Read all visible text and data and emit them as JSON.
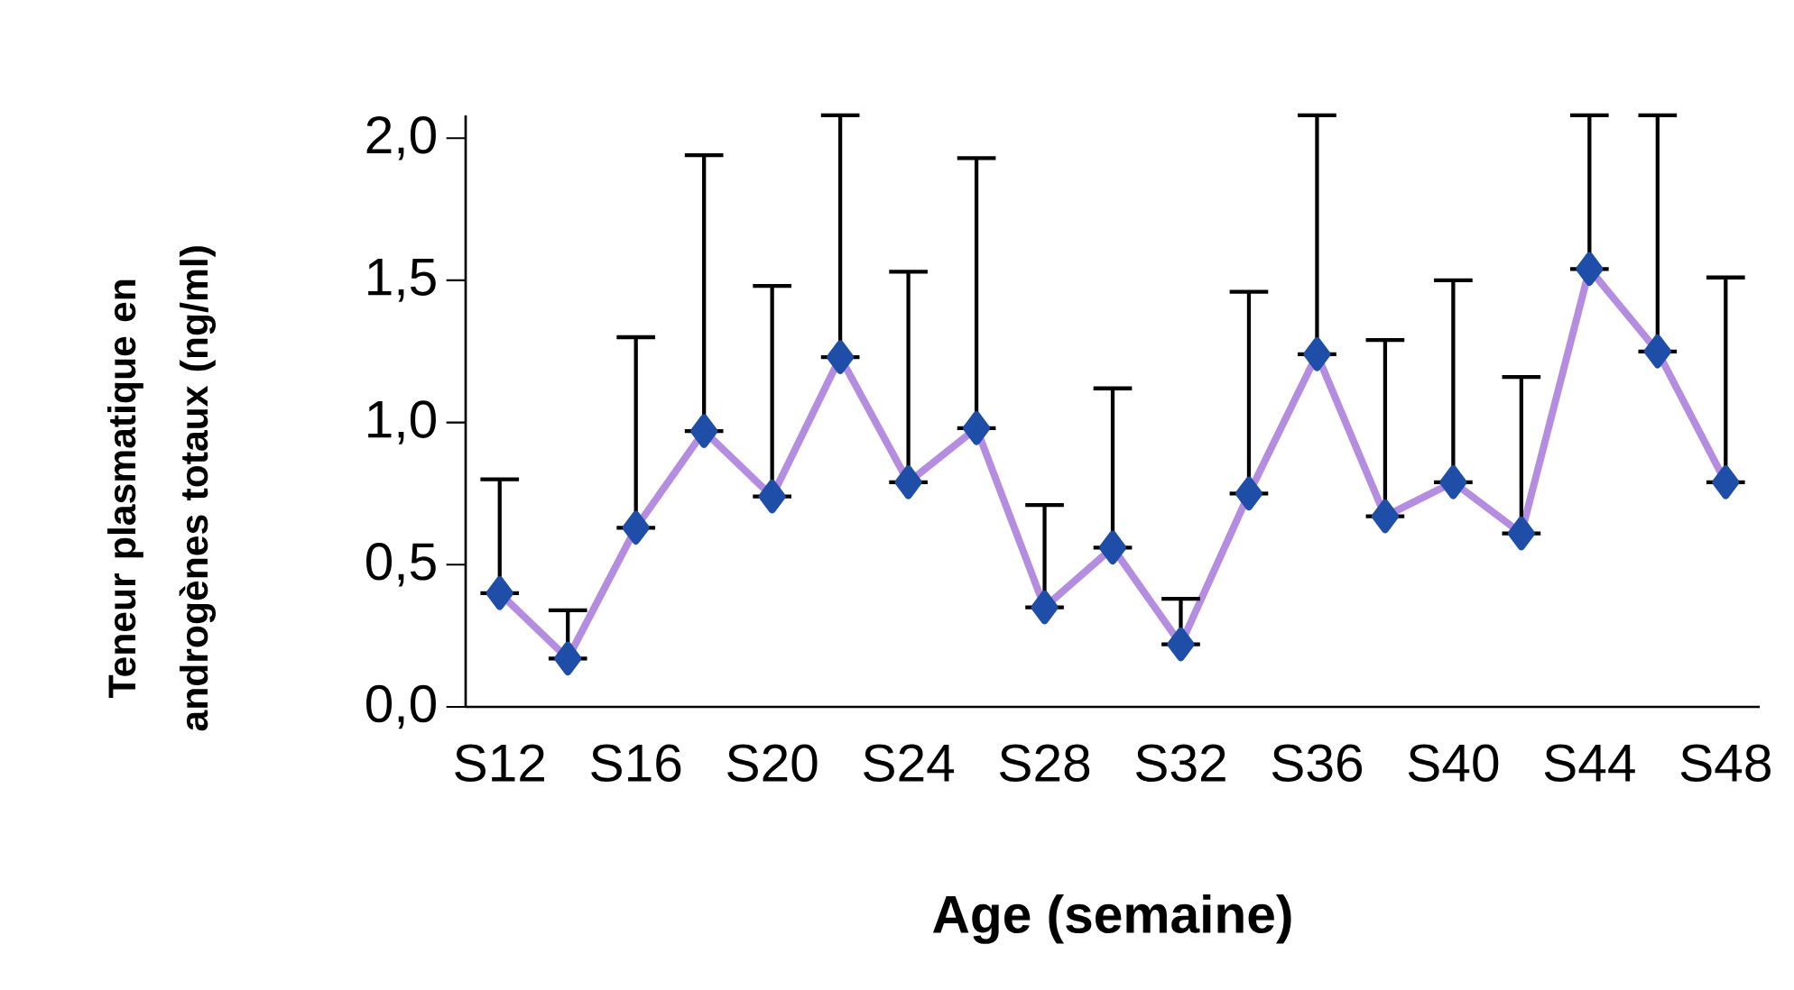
{
  "chart_data": {
    "type": "line",
    "xlabel": "Age (semaine)",
    "ylabel": "Teneur plasmatique en androgènes totaux (ng/ml)",
    "categories": [
      "S12",
      null,
      "S16",
      null,
      "S20",
      null,
      "S24",
      null,
      "S28",
      null,
      "S32",
      null,
      "S36",
      null,
      "S40",
      null,
      "S44",
      null,
      "S48"
    ],
    "series": [
      {
        "color": "#b48ce0",
        "values": [
          0.4,
          0.17,
          0.63,
          0.97,
          0.74,
          1.23,
          0.79,
          0.98,
          0.35,
          0.56,
          0.22,
          0.75,
          1.24,
          0.67,
          0.79,
          0.61,
          1.54,
          1.25,
          0.79
        ],
        "errors": [
          [
            0.4,
            0.8
          ],
          [
            0.17,
            0.34
          ],
          [
            0.63,
            1.3
          ],
          [
            0.97,
            1.94
          ],
          [
            0.74,
            1.48
          ],
          [
            1.23,
            2.08
          ],
          [
            0.79,
            1.53
          ],
          [
            0.98,
            1.93
          ],
          [
            0.35,
            0.71
          ],
          [
            0.56,
            1.12
          ],
          [
            0.22,
            0.38
          ],
          [
            0.75,
            1.46
          ],
          [
            1.24,
            2.08
          ],
          [
            0.67,
            1.29
          ],
          [
            0.79,
            1.5
          ],
          [
            0.61,
            1.16
          ],
          [
            1.54,
            2.08
          ],
          [
            1.25,
            2.08
          ],
          [
            0.79,
            1.51
          ]
        ]
      }
    ],
    "ylim": [
      0,
      2.08
    ],
    "yticks": [
      {
        "value": 0,
        "label": "0,0"
      },
      {
        "value": 0.5,
        "label": "0,5"
      },
      {
        "value": 1,
        "label": "1,0"
      },
      {
        "value": 1.5,
        "label": "1,5"
      },
      {
        "value": 2,
        "label": "2,0"
      }
    ],
    "marker": "diamond",
    "line_style": "solid",
    "grid": false
  }
}
